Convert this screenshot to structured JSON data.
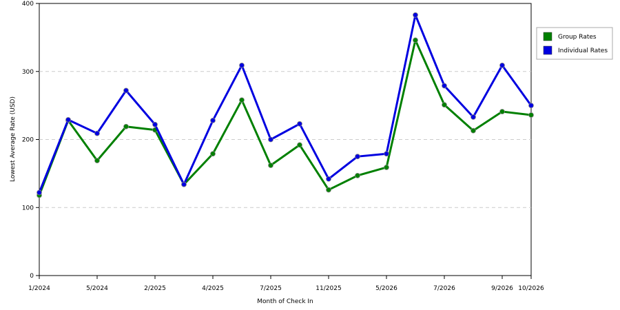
{
  "chart_data": {
    "type": "line",
    "x_label": "Month of Check In",
    "y_label": "Lowest Average Rate (USD)",
    "categories": [
      "1/2024",
      null,
      "5/2024",
      null,
      "2/2025",
      null,
      "4/2025",
      null,
      "7/2025",
      null,
      "11/2025",
      null,
      "5/2026",
      null,
      "7/2026",
      null,
      "9/2026",
      "10/2026"
    ],
    "series": [
      {
        "name": "Group Rates",
        "color": "#008000",
        "values": [
          118,
          228,
          169,
          219,
          214,
          134,
          179,
          258,
          162,
          192,
          126,
          147,
          159,
          346,
          251,
          213,
          241,
          236
        ]
      },
      {
        "name": "Individual Rates",
        "color": "#0000e0",
        "values": [
          122,
          229,
          209,
          272,
          222,
          134,
          228,
          309,
          200,
          223,
          142,
          175,
          179,
          383,
          279,
          233,
          309,
          250
        ]
      }
    ],
    "ylim": [
      0,
      400
    ],
    "yticks": [
      0,
      100,
      200,
      300,
      400
    ],
    "grid": true,
    "legend": "right"
  }
}
